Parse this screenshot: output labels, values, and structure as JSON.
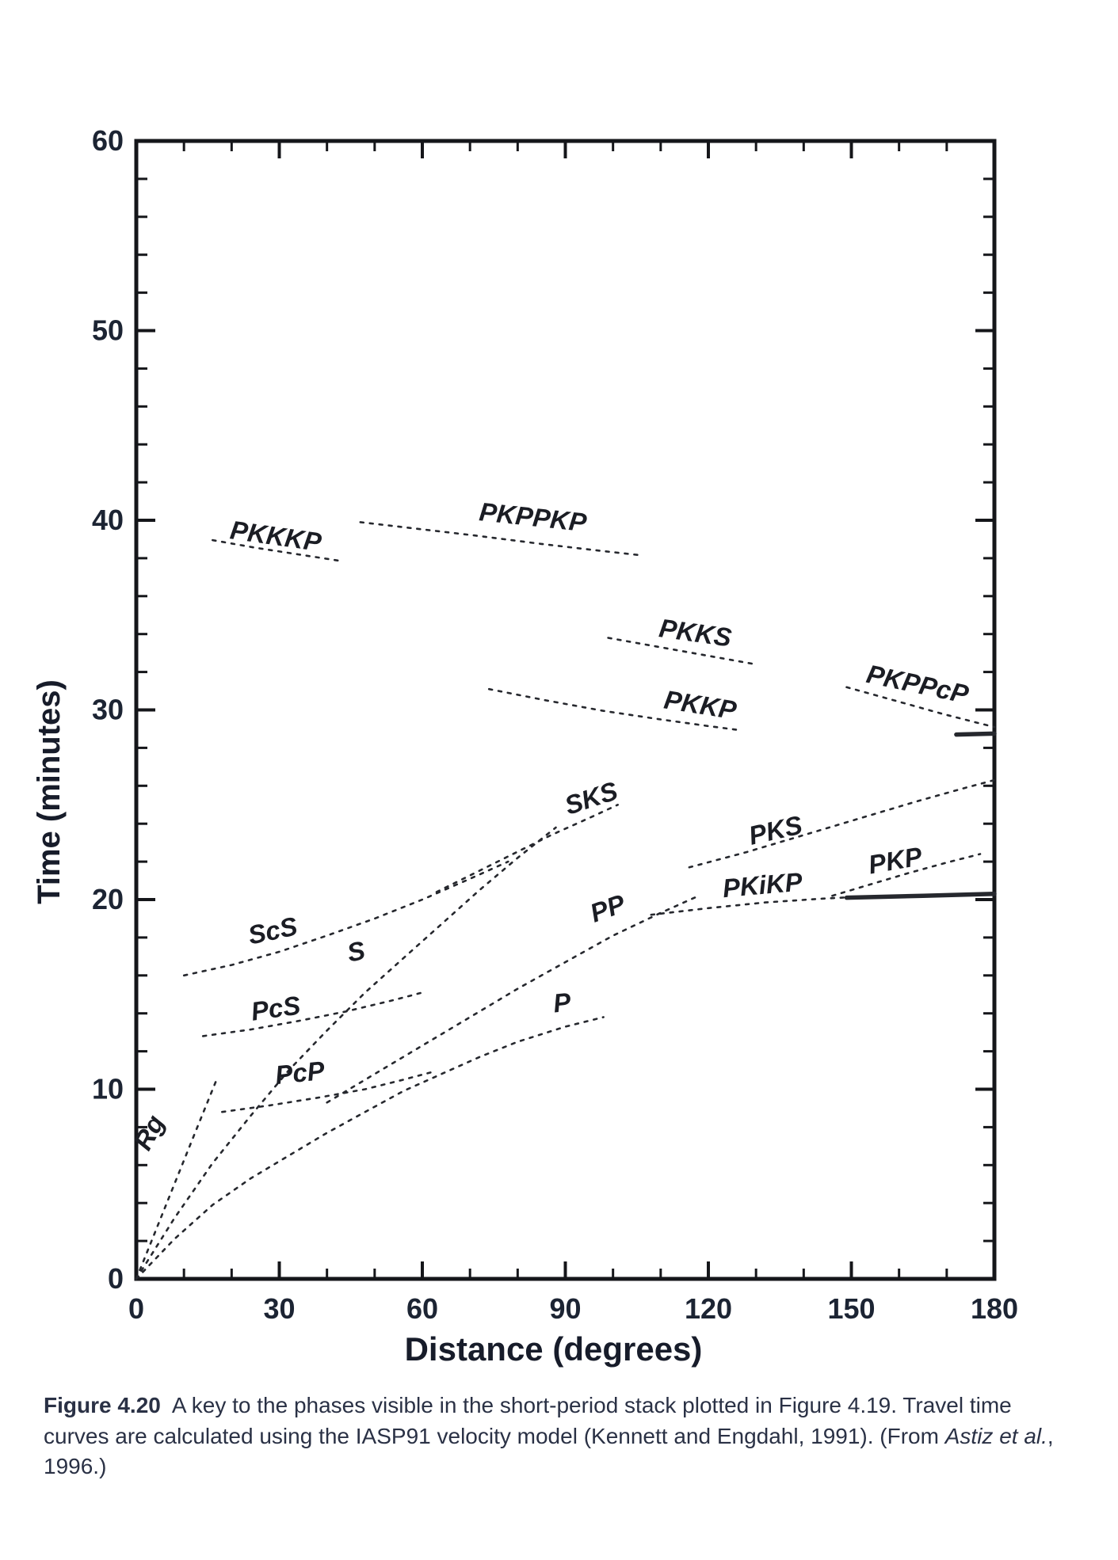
{
  "figure": {
    "caption_label": "Figure 4.20",
    "caption_text_1": "A key to the phases visible in the short-period stack plotted in Figure 4.19. Travel time curves are calculated using the IASP91 velocity model (Kennett and Engdahl, 1991). (From ",
    "caption_italic": "Astiz et al.",
    "caption_text_2": ", 1996.)"
  },
  "chart_data": {
    "type": "line",
    "title": "",
    "xlabel": "Distance (degrees)",
    "ylabel": "Time (minutes)",
    "xlim": [
      0,
      180
    ],
    "ylim": [
      0,
      60
    ],
    "x_major_ticks": [
      0,
      30,
      60,
      90,
      120,
      150,
      180
    ],
    "x_minor_step": 10,
    "y_major_ticks": [
      0,
      10,
      20,
      30,
      40,
      50,
      60
    ],
    "y_minor_step": 2,
    "grid": false,
    "legend": "none",
    "axis_color": "#15161a",
    "curve_color": "#26282e",
    "series": [
      {
        "name": "Rg",
        "style": "dashed",
        "label": {
          "x": 4.3,
          "y": 7.5,
          "rotation": -62
        },
        "points": [
          [
            0,
            0
          ],
          [
            4,
            2.5
          ],
          [
            8,
            5.0
          ],
          [
            12,
            7.5
          ],
          [
            17,
            10.6
          ]
        ]
      },
      {
        "name": "P",
        "style": "dashed",
        "label": {
          "x": 89.5,
          "y": 14.1,
          "rotation": -6
        },
        "points": [
          [
            0,
            0
          ],
          [
            8,
            2.1
          ],
          [
            16,
            3.9
          ],
          [
            24,
            5.3
          ],
          [
            32,
            6.5
          ],
          [
            40,
            7.7
          ],
          [
            48,
            8.8
          ],
          [
            56,
            9.9
          ],
          [
            64,
            10.8
          ],
          [
            72,
            11.7
          ],
          [
            80,
            12.5
          ],
          [
            90,
            13.3
          ],
          [
            98,
            13.8
          ]
        ]
      },
      {
        "name": "S",
        "style": "dashed",
        "label": {
          "x": 46.5,
          "y": 16.8,
          "rotation": -12
        },
        "points": [
          [
            0,
            0
          ],
          [
            8,
            3.2
          ],
          [
            16,
            6.1
          ],
          [
            24,
            8.6
          ],
          [
            32,
            11.0
          ],
          [
            40,
            13.1
          ],
          [
            48,
            15.1
          ],
          [
            56,
            16.9
          ],
          [
            64,
            18.7
          ],
          [
            72,
            20.5
          ],
          [
            80,
            22.2
          ],
          [
            88,
            23.8
          ]
        ]
      },
      {
        "name": "PcP",
        "style": "dashed",
        "label": {
          "x": 34.5,
          "y": 10.4,
          "rotation": -6
        },
        "points": [
          [
            18,
            8.8
          ],
          [
            28,
            9.15
          ],
          [
            38,
            9.55
          ],
          [
            48,
            10.0
          ],
          [
            56,
            10.5
          ],
          [
            62,
            10.9
          ]
        ]
      },
      {
        "name": "PcS",
        "style": "dashed",
        "label": {
          "x": 29.5,
          "y": 13.8,
          "rotation": -8
        },
        "points": [
          [
            14,
            12.8
          ],
          [
            24,
            13.15
          ],
          [
            34,
            13.6
          ],
          [
            44,
            14.1
          ],
          [
            54,
            14.7
          ],
          [
            60,
            15.1
          ]
        ]
      },
      {
        "name": "ScS",
        "style": "dashed",
        "label": {
          "x": 29,
          "y": 17.9,
          "rotation": -12
        },
        "points": [
          [
            10,
            16.0
          ],
          [
            20,
            16.55
          ],
          [
            30,
            17.25
          ],
          [
            40,
            18.1
          ],
          [
            50,
            19.0
          ],
          [
            60,
            20.0
          ],
          [
            70,
            21.1
          ],
          [
            78,
            22.0
          ]
        ]
      },
      {
        "name": "SKS",
        "style": "dashed",
        "label": {
          "x": 96,
          "y": 24.9,
          "rotation": -18
        },
        "points": [
          [
            63,
            20.4
          ],
          [
            71,
            21.4
          ],
          [
            79,
            22.4
          ],
          [
            87,
            23.4
          ],
          [
            95,
            24.3
          ],
          [
            101,
            25.0
          ]
        ]
      },
      {
        "name": "PP",
        "style": "dashed",
        "label": {
          "x": 99.5,
          "y": 19.1,
          "rotation": -20
        },
        "points": [
          [
            40,
            9.3
          ],
          [
            50,
            10.8
          ],
          [
            60,
            12.3
          ],
          [
            70,
            13.8
          ],
          [
            80,
            15.3
          ],
          [
            90,
            16.7
          ],
          [
            100,
            18.1
          ],
          [
            110,
            19.3
          ],
          [
            118,
            20.2
          ]
        ]
      },
      {
        "name": "PKiKP",
        "style": "dashed",
        "label": {
          "x": 131.5,
          "y": 20.3,
          "rotation": -5
        },
        "points": [
          [
            108,
            19.2
          ],
          [
            120,
            19.55
          ],
          [
            132,
            19.85
          ],
          [
            144,
            20.05
          ],
          [
            152,
            20.15
          ]
        ]
      },
      {
        "name": "PKP",
        "style": "dashed",
        "label": {
          "x": 159.5,
          "y": 21.6,
          "rotation": -10
        },
        "points": [
          [
            146,
            20.2
          ],
          [
            154,
            20.8
          ],
          [
            162,
            21.4
          ],
          [
            170,
            21.95
          ],
          [
            177,
            22.4
          ]
        ]
      },
      {
        "name": "PKS",
        "style": "dashed",
        "label": {
          "x": 134.5,
          "y": 23.2,
          "rotation": -13
        },
        "points": [
          [
            116,
            21.7
          ],
          [
            128,
            22.5
          ],
          [
            140,
            23.4
          ],
          [
            152,
            24.3
          ],
          [
            164,
            25.2
          ],
          [
            174,
            25.9
          ],
          [
            180,
            26.3
          ]
        ]
      },
      {
        "name": "PKKP",
        "style": "dashed",
        "label": {
          "x": 118,
          "y": 29.8,
          "rotation": 9
        },
        "points": [
          [
            74,
            31.1
          ],
          [
            86,
            30.5
          ],
          [
            98,
            29.95
          ],
          [
            110,
            29.5
          ],
          [
            120,
            29.15
          ],
          [
            126,
            28.95
          ]
        ]
      },
      {
        "name": "PKKS",
        "style": "dashed",
        "label": {
          "x": 117,
          "y": 33.6,
          "rotation": 8
        },
        "points": [
          [
            99,
            33.8
          ],
          [
            109,
            33.35
          ],
          [
            120,
            32.85
          ],
          [
            130,
            32.4
          ]
        ]
      },
      {
        "name": "PKKKP",
        "style": "dashed",
        "label": {
          "x": 29,
          "y": 38.7,
          "rotation": 8
        },
        "points": [
          [
            16,
            38.95
          ],
          [
            25,
            38.55
          ],
          [
            34,
            38.2
          ],
          [
            43,
            37.85
          ]
        ]
      },
      {
        "name": "PKPPKP",
        "style": "dashed",
        "label": {
          "x": 83,
          "y": 39.7,
          "rotation": 6
        },
        "points": [
          [
            47,
            39.9
          ],
          [
            59,
            39.55
          ],
          [
            71,
            39.2
          ],
          [
            85,
            38.75
          ],
          [
            97,
            38.4
          ],
          [
            106,
            38.15
          ]
        ]
      },
      {
        "name": "PKPPcP",
        "style": "dashed",
        "label": {
          "x": 163.5,
          "y": 30.9,
          "rotation": 12
        },
        "points": [
          [
            149,
            31.2
          ],
          [
            159,
            30.5
          ],
          [
            169,
            29.8
          ],
          [
            176,
            29.35
          ],
          [
            180,
            29.1
          ]
        ]
      },
      {
        "name": "PKP-caustic",
        "style": "solid",
        "label": null,
        "points": [
          [
            149,
            20.1
          ],
          [
            165,
            20.2
          ],
          [
            180,
            20.3
          ]
        ]
      },
      {
        "name": "PKPPcP-tail",
        "style": "solid",
        "label": null,
        "points": [
          [
            172,
            28.7
          ],
          [
            180,
            28.75
          ]
        ]
      }
    ]
  }
}
